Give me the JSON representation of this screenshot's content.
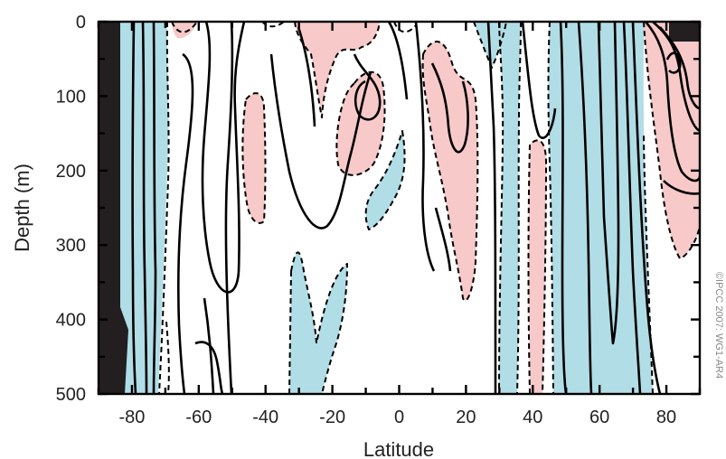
{
  "chart_data": {
    "type": "contour",
    "title": "",
    "xlabel": "Latitude",
    "ylabel": "Depth (m)",
    "xlim": [
      -90,
      90
    ],
    "ylim": [
      500,
      0
    ],
    "x_ticks": [
      -80,
      -60,
      -40,
      -20,
      0,
      20,
      40,
      60,
      80
    ],
    "y_ticks": [
      0,
      100,
      200,
      300,
      400,
      500
    ],
    "y_inverted": true,
    "grid": false,
    "colors": {
      "positive_fill": "#f7c9c9",
      "negative_fill": "#b1dde6",
      "land_mask": "#231f20",
      "contour_line": "#000000"
    },
    "line_styles": {
      "positive": "solid",
      "negative_or_zero": "dashed"
    },
    "land_mask_region": {
      "lat_from": -90,
      "lat_to": -83.5
    },
    "regions": [
      {
        "kind": "negative",
        "lat_from": -83.5,
        "lat_to": -73.5,
        "depth_from": 0,
        "depth_to": 500
      },
      {
        "kind": "negative",
        "lat_from": 30,
        "lat_to": 40,
        "depth_from": 20,
        "depth_to": 500
      },
      {
        "kind": "negative",
        "lat_from": 47,
        "lat_to": 76,
        "depth_from": 0,
        "depth_to": 500
      },
      {
        "kind": "positive",
        "lat_from": 75,
        "lat_to": 90,
        "depth_from": 0,
        "depth_to": 285
      },
      {
        "kind": "positive",
        "lat_from": 8,
        "lat_to": 29,
        "depth_from": 20,
        "depth_to": 370
      },
      {
        "kind": "positive",
        "lat_from": -44,
        "lat_to": -38,
        "depth_from": 90,
        "depth_to": 265
      },
      {
        "kind": "positive",
        "lat_from": -10,
        "lat_to": 0,
        "depth_from": 60,
        "depth_to": 205
      },
      {
        "kind": "positive",
        "lat_from": -26,
        "lat_to": -5,
        "depth_from": 0,
        "depth_to": 120
      },
      {
        "kind": "positive",
        "lat_from": 40,
        "lat_to": 46,
        "depth_from": 180,
        "depth_to": 500
      },
      {
        "kind": "negative",
        "lat_from": -35,
        "lat_to": -17,
        "depth_from": 295,
        "depth_to": 500
      },
      {
        "kind": "negative",
        "lat_from": -9,
        "lat_to": 0,
        "depth_from": 145,
        "depth_to": 275
      }
    ],
    "copyright": "©IPCC 2007: WG1-AR4"
  }
}
